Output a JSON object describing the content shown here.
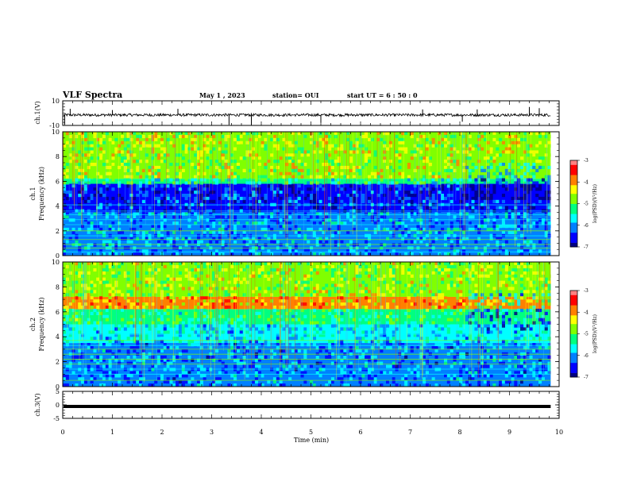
{
  "header": {
    "title": "VLF Spectra",
    "date": "May 1 , 2023",
    "station": "station= OUI",
    "start": "start UT = 6 : 50 : 0"
  },
  "colors": {
    "colormap": [
      "#000080",
      "#0000ff",
      "#0080ff",
      "#00ffff",
      "#00ff80",
      "#80ff00",
      "#ffff00",
      "#ff8000",
      "#ff0000",
      "#ff8080",
      "#ffffff"
    ],
    "trace": "#000000",
    "frame": "#000000",
    "background": "#ffffff"
  },
  "chart_data": [
    {
      "id": "ch1-waveform",
      "type": "line",
      "ylabel": "ch.1(V)",
      "ylim": [
        -10,
        10
      ],
      "yticks": [
        "10",
        "-10"
      ],
      "xlim": [
        0,
        10
      ],
      "baseline": -1.5,
      "spikes": [
        {
          "x": 0.04,
          "y": -9.5
        },
        {
          "x": 0.15,
          "y": 3.5
        },
        {
          "x": 1.0,
          "y": 2.5
        },
        {
          "x": 2.32,
          "y": 3.5
        },
        {
          "x": 3.35,
          "y": -9.5
        },
        {
          "x": 3.8,
          "y": -9.5
        },
        {
          "x": 5.2,
          "y": -8.0
        },
        {
          "x": 7.25,
          "y": 3.0
        },
        {
          "x": 8.05,
          "y": -7.0
        },
        {
          "x": 8.35,
          "y": 3.0
        },
        {
          "x": 9.4,
          "y": 5.0
        },
        {
          "x": 9.6,
          "y": 4.0
        }
      ]
    },
    {
      "id": "ch1-spectrogram",
      "type": "heatmap",
      "ylabel": "ch.1 Frequency (kHz)",
      "ylim": [
        0,
        10
      ],
      "yticks": [
        "0",
        "2",
        "4",
        "6",
        "8",
        "10"
      ],
      "xlim": [
        0,
        9.83
      ],
      "colorbar": {
        "label": "log(PSD)(V²/Hz)",
        "range": [
          -7,
          -3
        ],
        "ticks": [
          "-3",
          "-4",
          "-5",
          "-6",
          "-7"
        ]
      },
      "bands_khz": [
        {
          "from": 6.2,
          "to": 10.0,
          "level": -4.6
        },
        {
          "from": 5.8,
          "to": 6.2,
          "level": -5.3
        },
        {
          "from": 3.5,
          "to": 5.8,
          "level": -6.4
        },
        {
          "from": 0.0,
          "to": 3.5,
          "level": -6.0
        }
      ],
      "lines_khz": [
        0.3,
        0.6,
        0.9,
        1.3,
        1.6,
        2.0,
        2.5,
        2.9,
        3.3,
        3.6,
        4.1
      ],
      "regime_change_min": 8.1
    },
    {
      "id": "ch2-spectrogram",
      "type": "heatmap",
      "ylabel": "ch.2 Frequency (kHz)",
      "ylim": [
        0,
        10
      ],
      "yticks": [
        "0",
        "2",
        "4",
        "6",
        "8",
        "10"
      ],
      "xlim": [
        0,
        9.83
      ],
      "colorbar": {
        "label": "log(PSD)(V²/Hz)",
        "range": [
          -7,
          -3
        ],
        "ticks": [
          "-3",
          "-4",
          "-5",
          "-6",
          "-7"
        ]
      },
      "bands_khz": [
        {
          "from": 7.2,
          "to": 10.0,
          "level": -4.7
        },
        {
          "from": 6.2,
          "to": 7.2,
          "level": -4.1
        },
        {
          "from": 5.0,
          "to": 6.2,
          "level": -5.2
        },
        {
          "from": 3.5,
          "to": 5.0,
          "level": -5.7
        },
        {
          "from": 0.0,
          "to": 3.5,
          "level": -6.1
        }
      ],
      "lines_khz": [
        0.5,
        1.0,
        1.4,
        1.8,
        2.2,
        2.6,
        3.0,
        3.3,
        3.7,
        4.2
      ],
      "regime_change_min": 8.1
    },
    {
      "id": "ch3-waveform",
      "type": "line",
      "ylabel": "ch.3(V)",
      "ylim": [
        -5,
        5
      ],
      "yticks": [
        "5",
        "0",
        "-5"
      ],
      "xlim": [
        0,
        10
      ],
      "baseline": -0.6
    }
  ],
  "x_axis": {
    "label": "Time (min)",
    "ticks": [
      "0",
      "1",
      "2",
      "3",
      "4",
      "5",
      "6",
      "7",
      "8",
      "9",
      "10"
    ]
  }
}
